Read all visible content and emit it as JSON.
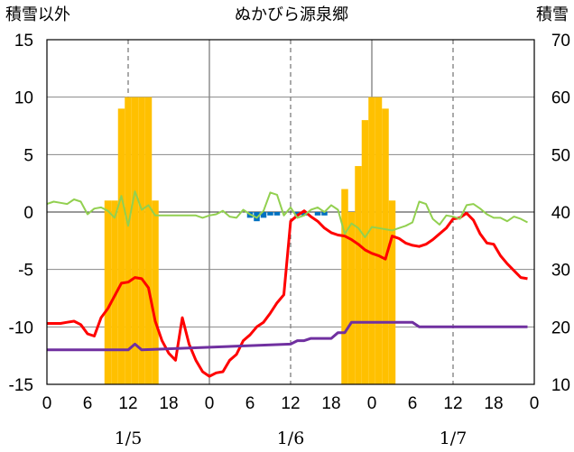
{
  "chart_data": {
    "type": "bar+line",
    "title": "ぬかびら源泉郷",
    "left_axis_label": "積雪以外",
    "right_axis_label": "積雪",
    "ylim_left": [
      -15,
      15
    ],
    "yticks_left": [
      15,
      10,
      5,
      0,
      -5,
      -10,
      -15
    ],
    "ylim_right": [
      10,
      70
    ],
    "yticks_right": [
      70,
      60,
      50,
      40,
      30,
      20,
      10
    ],
    "xlim_hours": [
      0,
      72
    ],
    "x_tick_labels": [
      "0",
      "6",
      "12",
      "18",
      "0",
      "6",
      "12",
      "18",
      "0",
      "6",
      "12",
      "18",
      "0"
    ],
    "date_labels": [
      "1/5",
      "1/6",
      "1/7"
    ],
    "grid": "dashed vertical at 12:00 each day; solid vertical at day boundaries; solid horizontal at 0",
    "colors": {
      "snow_depth": "#ffc000",
      "precipitation": "#0070c0",
      "temperature": "#ff0000",
      "wind": "#92d050",
      "purple_series": "#7030a0"
    },
    "snow_depth_bars": {
      "axis": "right",
      "x": [
        9,
        10,
        11,
        12,
        13,
        14,
        15,
        16,
        44,
        45,
        46,
        47,
        48,
        49,
        50,
        51
      ],
      "values": [
        42,
        42,
        58,
        60,
        60,
        60,
        60,
        42,
        44,
        40,
        48,
        56,
        60,
        60,
        58,
        42
      ]
    },
    "precipitation_bars": {
      "axis": "left",
      "x": [
        30,
        31,
        32,
        33,
        34,
        37,
        38,
        40,
        41
      ],
      "values": [
        -0.5,
        -0.8,
        -0.5,
        -0.3,
        -0.3,
        -0.3,
        -0.3,
        -0.3,
        -0.3
      ]
    },
    "series": [
      {
        "axis": "left",
        "x": [
          0,
          1,
          2,
          3,
          4,
          5,
          6,
          7,
          8,
          9,
          10,
          11,
          12,
          13,
          14,
          15,
          16,
          17,
          18,
          19,
          20,
          21,
          22,
          23,
          24,
          25,
          26,
          27,
          28,
          29,
          30,
          31,
          32,
          33,
          34,
          35,
          36,
          37,
          38,
          39,
          40,
          41,
          42,
          43,
          44,
          45,
          46,
          47,
          48,
          49,
          50,
          51,
          52,
          53,
          54,
          55,
          56,
          57,
          58,
          59,
          60,
          61,
          62,
          63,
          64,
          65,
          66,
          67,
          68,
          69,
          70,
          71
        ],
        "values": [
          -9.7,
          -9.7,
          -9.7,
          -9.6,
          -9.5,
          -9.8,
          -10.6,
          -10.8,
          -9.2,
          -8.4,
          -7.3,
          -6.2,
          -6.1,
          -5.7,
          -5.8,
          -6.6,
          -9.5,
          -11.2,
          -12.3,
          -12.9,
          -9.2,
          -11.5,
          -12.9,
          -13.9,
          -14.3,
          -14.0,
          -13.9,
          -12.9,
          -12.4,
          -11.2,
          -10.7,
          -10.0,
          -9.6,
          -8.8,
          -7.9,
          -7.2,
          -0.8,
          -0.3,
          0.1,
          -0.4,
          -0.8,
          -1.4,
          -1.8,
          -2.0,
          -2.1,
          -2.4,
          -2.8,
          -3.3,
          -3.6,
          -3.8,
          -4.1,
          -2.1,
          -2.3,
          -2.7,
          -2.9,
          -3.0,
          -2.8,
          -2.4,
          -1.9,
          -1.4,
          -0.6,
          -0.5,
          -0.1,
          -0.7,
          -1.9,
          -2.7,
          -2.8,
          -3.8,
          -4.5,
          -5.1,
          -5.7,
          -5.8
        ]
      },
      {
        "axis": "left",
        "x": [
          0,
          1,
          2,
          3,
          4,
          5,
          6,
          7,
          8,
          9,
          10,
          11,
          12,
          13,
          14,
          15,
          16,
          17,
          18,
          19,
          20,
          21,
          22,
          23,
          24,
          25,
          26,
          27,
          28,
          29,
          30,
          31,
          32,
          33,
          34,
          35,
          36,
          37,
          38,
          39,
          40,
          41,
          42,
          43,
          44,
          45,
          46,
          47,
          48,
          49,
          50,
          51,
          52,
          53,
          54,
          55,
          56,
          57,
          58,
          59,
          60,
          61,
          62,
          63,
          64,
          65,
          66,
          67,
          68,
          69,
          70,
          71
        ],
        "values": [
          0.7,
          0.9,
          0.8,
          0.7,
          1.1,
          0.9,
          -0.2,
          0.3,
          0.4,
          0.1,
          -0.5,
          1.4,
          -1.2,
          1.8,
          0.2,
          0.6,
          -0.3,
          -0.3,
          -0.3,
          -0.3,
          -0.3,
          -0.3,
          -0.3,
          -0.5,
          -0.3,
          -0.2,
          0.1,
          -0.4,
          -0.5,
          0.2,
          -0.2,
          -0.5,
          0.1,
          1.7,
          1.5,
          -0.3,
          0.4,
          -0.5,
          -0.3,
          0.2,
          0.4,
          0.0,
          0.6,
          0.2,
          -1.9,
          -1.0,
          -1.4,
          -2.2,
          -1.3,
          -1.4,
          -1.5,
          -1.6,
          -1.4,
          -1.2,
          -0.9,
          0.9,
          0.7,
          -0.6,
          -1.1,
          -0.3,
          -0.4,
          -0.6,
          0.6,
          0.7,
          0.3,
          -0.2,
          -0.5,
          -0.5,
          -0.8,
          -0.4,
          -0.6,
          -0.9
        ]
      },
      {
        "axis": "left",
        "x": [
          0,
          12,
          13,
          14,
          36,
          37,
          38,
          39,
          40,
          41,
          42,
          43,
          44,
          45,
          46,
          47,
          48,
          49,
          50,
          51,
          52,
          53,
          54,
          55,
          56,
          57,
          58,
          59,
          60,
          61,
          62,
          63,
          64,
          65,
          66,
          67,
          68,
          69,
          70,
          71
        ],
        "values": [
          -12.0,
          -12.0,
          -11.5,
          -12.0,
          -11.5,
          -11.2,
          -11.2,
          -11.0,
          -11.0,
          -11.0,
          -11.0,
          -10.5,
          -10.5,
          -9.6,
          -9.6,
          -9.6,
          -9.6,
          -9.6,
          -9.6,
          -9.6,
          -9.6,
          -9.6,
          -9.6,
          -10.0,
          -10.0,
          -10.0,
          -10.0,
          -10.0,
          -10.0,
          -10.0,
          -10.0,
          -10.0,
          -10.0,
          -10.0,
          -10.0,
          -10.0,
          -10.0,
          -10.0,
          -10.0,
          -10.0
        ]
      }
    ]
  }
}
